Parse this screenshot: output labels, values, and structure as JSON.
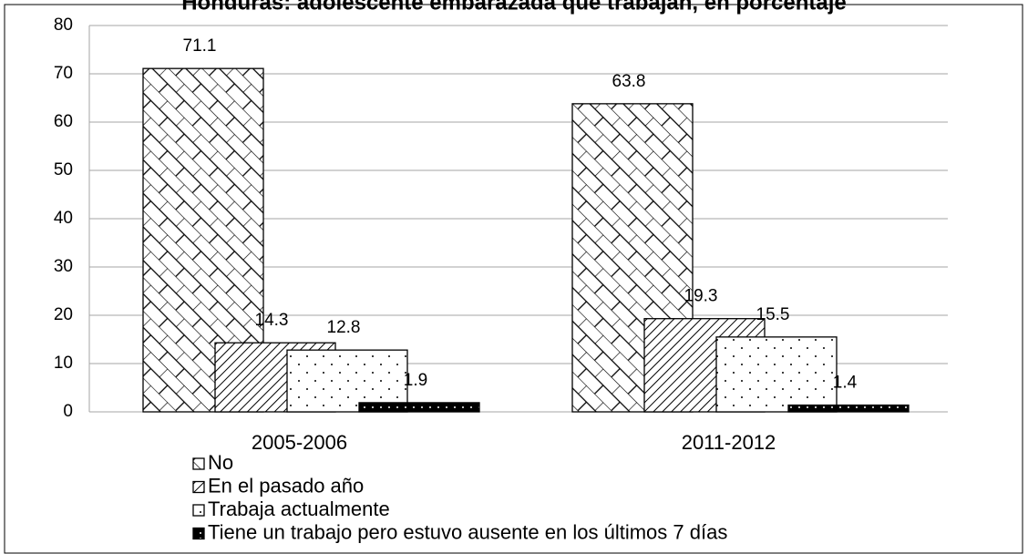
{
  "chart_data": {
    "type": "bar",
    "title": "Honduras: adolescente embarazada que trabajan, en porcentaje",
    "categories": [
      "2005-2006",
      "2011-2012"
    ],
    "series": [
      {
        "name": "No",
        "color": "#000000",
        "values": [
          71.1,
          63.8
        ]
      },
      {
        "name": "En el pasado año",
        "color": "#000000",
        "values": [
          14.3,
          19.3
        ]
      },
      {
        "name": "Trabaja actualmente",
        "color": "#000000",
        "values": [
          12.8,
          15.5
        ]
      },
      {
        "name": "Tiene un trabajo pero estuvo ausente en los últimos 7 días",
        "color": "#000000",
        "values": [
          1.9,
          1.4
        ]
      }
    ],
    "ylim": [
      0,
      80
    ],
    "yticks": [
      0,
      10,
      20,
      30,
      40,
      50,
      60,
      70,
      80
    ],
    "grid": true
  }
}
